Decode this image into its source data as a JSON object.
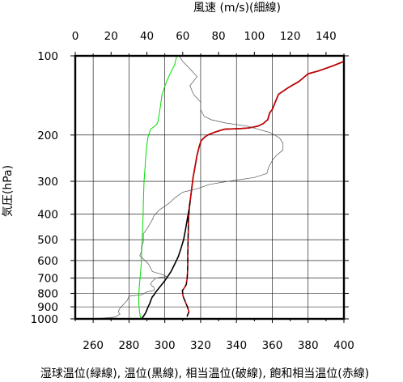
{
  "chart_data": {
    "type": "line",
    "title": "",
    "top_axis": {
      "label": "風速 (m/s)(細線)",
      "range": [
        0,
        150
      ],
      "ticks": [
        0,
        20,
        40,
        60,
        80,
        100,
        120,
        140
      ]
    },
    "bottom_axis": {
      "label": "湿球温位(緑線), 温位(黒線), 相当温位(破線), 飽和相当温位(赤線)",
      "range": [
        250,
        400
      ],
      "ticks": [
        260,
        280,
        300,
        320,
        340,
        360,
        380,
        400
      ]
    },
    "y_axis": {
      "label": "気圧(hPa)",
      "scale": "log",
      "range": [
        1000,
        100
      ],
      "ticks": [
        100,
        200,
        300,
        400,
        500,
        600,
        700,
        800,
        900,
        1000
      ]
    },
    "grid": true,
    "series": [
      {
        "axis": "bottom",
        "color": "#00dd00",
        "width": 1.0,
        "points": [
          [
            286.5,
            1000
          ],
          [
            286.0,
            950
          ],
          [
            285.6,
            900
          ],
          [
            285.4,
            850
          ],
          [
            285.5,
            800
          ],
          [
            285.8,
            750
          ],
          [
            286.2,
            700
          ],
          [
            286.6,
            650
          ],
          [
            286.9,
            600
          ],
          [
            287.1,
            550
          ],
          [
            287.4,
            500
          ],
          [
            287.6,
            450
          ],
          [
            287.9,
            400
          ],
          [
            288.1,
            350
          ],
          [
            288.4,
            300
          ],
          [
            288.8,
            275
          ],
          [
            289.2,
            250
          ],
          [
            289.7,
            225
          ],
          [
            290.5,
            205
          ],
          [
            292.0,
            190
          ],
          [
            294.5,
            185
          ],
          [
            296.0,
            180
          ],
          [
            297.0,
            165
          ],
          [
            298.5,
            140
          ],
          [
            301.0,
            125
          ],
          [
            303.5,
            115
          ],
          [
            305.5,
            108
          ],
          [
            306.7,
            100
          ]
        ]
      },
      {
        "axis": "bottom",
        "color": "#000000",
        "width": 1.6,
        "points": [
          [
            287.0,
            1000
          ],
          [
            288.2,
            975
          ],
          [
            289.2,
            950
          ],
          [
            290.0,
            925
          ],
          [
            290.7,
            900
          ],
          [
            291.5,
            875
          ],
          [
            292.2,
            850
          ],
          [
            293.0,
            825
          ],
          [
            294.0,
            810
          ],
          [
            295.0,
            790
          ],
          [
            297.0,
            760
          ],
          [
            299.0,
            730
          ],
          [
            301.0,
            700
          ],
          [
            303.5,
            660
          ],
          [
            305.5,
            620
          ],
          [
            307.5,
            580
          ],
          [
            309.0,
            540
          ],
          [
            310.5,
            500
          ],
          [
            311.5,
            460
          ],
          [
            312.5,
            420
          ],
          [
            313.5,
            385
          ],
          [
            314.3,
            350
          ],
          [
            315.0,
            320
          ],
          [
            315.8,
            290
          ],
          [
            316.8,
            265
          ],
          [
            317.9,
            240
          ],
          [
            319.3,
            220
          ],
          [
            320.3,
            210
          ],
          [
            322.5,
            203
          ],
          [
            324.0,
            200
          ],
          [
            328.0,
            195
          ],
          [
            331.0,
            192
          ],
          [
            333.5,
            190
          ],
          [
            342.0,
            189
          ],
          [
            347.0,
            188
          ],
          [
            352.0,
            185
          ],
          [
            355.0,
            181
          ],
          [
            356.5,
            177
          ],
          [
            357.5,
            175
          ],
          [
            358.5,
            165
          ],
          [
            360.0,
            160
          ],
          [
            362.0,
            148
          ],
          [
            363.5,
            140
          ],
          [
            369.0,
            132
          ],
          [
            375.0,
            125
          ],
          [
            380.0,
            117
          ],
          [
            386.0,
            114
          ],
          [
            394.0,
            109
          ],
          [
            400.0,
            105
          ]
        ]
      },
      {
        "axis": "bottom",
        "color": "#cc0000",
        "width": 1.6,
        "points": [
          [
            312.4,
            980
          ],
          [
            313.5,
            940
          ],
          [
            312.6,
            900
          ],
          [
            311.4,
            860
          ],
          [
            310.2,
            820
          ],
          [
            309.8,
            780
          ],
          [
            311.0,
            760
          ],
          [
            312.0,
            740
          ],
          [
            312.5,
            700
          ],
          [
            312.7,
            660
          ],
          [
            312.8,
            620
          ],
          [
            312.8,
            580
          ],
          [
            312.9,
            540
          ],
          [
            313.0,
            500
          ],
          [
            313.1,
            460
          ],
          [
            313.2,
            420
          ],
          [
            313.6,
            385
          ],
          [
            314.3,
            350
          ],
          [
            315.0,
            320
          ],
          [
            315.8,
            290
          ],
          [
            316.8,
            265
          ],
          [
            317.9,
            240
          ],
          [
            319.3,
            220
          ],
          [
            320.3,
            210
          ],
          [
            322.5,
            203
          ],
          [
            324.0,
            200
          ],
          [
            328.0,
            195
          ],
          [
            331.0,
            192
          ],
          [
            333.5,
            190
          ],
          [
            342.0,
            189
          ],
          [
            347.0,
            188
          ],
          [
            352.0,
            185
          ],
          [
            355.0,
            181
          ],
          [
            356.5,
            177
          ],
          [
            357.5,
            175
          ],
          [
            358.5,
            165
          ],
          [
            360.0,
            160
          ],
          [
            362.0,
            148
          ],
          [
            363.5,
            140
          ],
          [
            369.0,
            132
          ],
          [
            375.0,
            125
          ],
          [
            380.0,
            117
          ],
          [
            386.0,
            114
          ],
          [
            394.0,
            109
          ],
          [
            400.0,
            105
          ]
        ]
      },
      {
        "axis": "bottom",
        "color": "#000000",
        "width": 1.3,
        "dashed": true,
        "points": [
          [
            312.4,
            980
          ],
          [
            313.5,
            940
          ],
          [
            312.6,
            900
          ],
          [
            311.4,
            860
          ],
          [
            310.2,
            820
          ],
          [
            309.8,
            780
          ],
          [
            311.0,
            760
          ],
          [
            312.0,
            740
          ],
          [
            312.5,
            700
          ],
          [
            312.7,
            660
          ],
          [
            312.8,
            620
          ],
          [
            312.8,
            580
          ],
          [
            312.9,
            540
          ],
          [
            313.0,
            500
          ],
          [
            313.1,
            460
          ],
          [
            313.2,
            420
          ],
          [
            313.6,
            385
          ],
          [
            314.3,
            350
          ]
        ]
      },
      {
        "axis": "top",
        "color": "#555555",
        "width": 0.7,
        "points": [
          [
            10,
            1000
          ],
          [
            22,
            985
          ],
          [
            25,
            960
          ],
          [
            24,
            940
          ],
          [
            25,
            910
          ],
          [
            27,
            880
          ],
          [
            29,
            850
          ],
          [
            30,
            820
          ],
          [
            37,
            810
          ],
          [
            40,
            790
          ],
          [
            44,
            780
          ],
          [
            44,
            760
          ],
          [
            42,
            740
          ],
          [
            43,
            720
          ],
          [
            45,
            700
          ],
          [
            51,
            690
          ],
          [
            49,
            680
          ],
          [
            43,
            660
          ],
          [
            42,
            640
          ],
          [
            41,
            620
          ],
          [
            39,
            600
          ],
          [
            36,
            575
          ],
          [
            37,
            555
          ],
          [
            37,
            530
          ],
          [
            38,
            510
          ],
          [
            38,
            495
          ],
          [
            38,
            475
          ],
          [
            40,
            455
          ],
          [
            43,
            420
          ],
          [
            44,
            405
          ],
          [
            47,
            385
          ],
          [
            52,
            365
          ],
          [
            56,
            345
          ],
          [
            60,
            330
          ],
          [
            68,
            320
          ],
          [
            75,
            308
          ],
          [
            88,
            298
          ],
          [
            100,
            290
          ],
          [
            107,
            280
          ],
          [
            108,
            265
          ],
          [
            110,
            250
          ],
          [
            112,
            240
          ],
          [
            116,
            228
          ],
          [
            116,
            215
          ],
          [
            114,
            205
          ],
          [
            109,
            196
          ],
          [
            102,
            190
          ],
          [
            96,
            185
          ],
          [
            84,
            180
          ],
          [
            76,
            175
          ],
          [
            72,
            170
          ],
          [
            70,
            160
          ],
          [
            70,
            150
          ],
          [
            66,
            140
          ],
          [
            64,
            130
          ],
          [
            68,
            120
          ],
          [
            64,
            112
          ],
          [
            60,
            105
          ],
          [
            58,
            100
          ]
        ]
      }
    ]
  }
}
